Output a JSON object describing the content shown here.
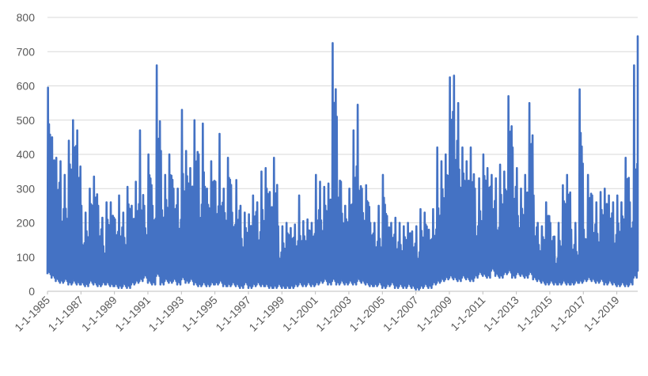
{
  "chart_data": {
    "type": "line",
    "title": "",
    "xlabel": "",
    "ylabel": "",
    "ylim": [
      0,
      800
    ],
    "y_ticks": [
      0,
      100,
      200,
      300,
      400,
      500,
      600,
      700,
      800
    ],
    "x_range": [
      "1-1-1985",
      "4-1-2020"
    ],
    "x_tick_labels": [
      "1-1-1985",
      "1-1-1987",
      "1-1-1989",
      "1-1-1991",
      "1-1-1993",
      "1-1-1995",
      "1-1-1997",
      "1-1-1999",
      "1-1-2001",
      "1-1-2003",
      "1-1-2005",
      "1-1-2007",
      "1-1-2009",
      "1-1-2011",
      "1-1-2013",
      "1-1-2015",
      "1-1-2017",
      "1-1-2019"
    ],
    "grid": true,
    "legend": "none",
    "series_color": "#4472C4",
    "series": [
      {
        "x": [
          "1985-01",
          "1985-04",
          "1985-07",
          "1985-10",
          "1986-01",
          "1986-04",
          "1986-07",
          "1986-10",
          "1987-01",
          "1987-04",
          "1987-07",
          "1987-10",
          "1988-01",
          "1988-04",
          "1988-07",
          "1988-10",
          "1989-01",
          "1989-04",
          "1989-07",
          "1989-10",
          "1990-01",
          "1990-04",
          "1990-07",
          "1990-10",
          "1991-01",
          "1991-04",
          "1991-07",
          "1991-10",
          "1992-01",
          "1992-04",
          "1992-07",
          "1992-10",
          "1993-01",
          "1993-04",
          "1993-07",
          "1993-10",
          "1994-01",
          "1994-04",
          "1994-07",
          "1994-10",
          "1995-01",
          "1995-04",
          "1995-07",
          "1995-10",
          "1996-01",
          "1996-04",
          "1996-07",
          "1996-10",
          "1997-01",
          "1997-04",
          "1997-07",
          "1997-10",
          "1998-01",
          "1998-04",
          "1998-07",
          "1998-10",
          "1999-01",
          "1999-04",
          "1999-07",
          "1999-10",
          "2000-01",
          "2000-04",
          "2000-07",
          "2000-10",
          "2001-01",
          "2001-04",
          "2001-07",
          "2001-10",
          "2002-01",
          "2002-04",
          "2002-07",
          "2002-10",
          "2003-01",
          "2003-04",
          "2003-07",
          "2003-10",
          "2004-01",
          "2004-04",
          "2004-07",
          "2004-10",
          "2005-01",
          "2005-04",
          "2005-07",
          "2005-10",
          "2006-01",
          "2006-04",
          "2006-07",
          "2006-10",
          "2007-01",
          "2007-04",
          "2007-07",
          "2007-10",
          "2008-01",
          "2008-04",
          "2008-07",
          "2008-10",
          "2009-01",
          "2009-04",
          "2009-07",
          "2009-10",
          "2010-01",
          "2010-04",
          "2010-07",
          "2010-10",
          "2011-01",
          "2011-04",
          "2011-07",
          "2011-10",
          "2012-01",
          "2012-04",
          "2012-07",
          "2012-10",
          "2013-01",
          "2013-04",
          "2013-07",
          "2013-10",
          "2014-01",
          "2014-04",
          "2014-07",
          "2014-10",
          "2015-01",
          "2015-04",
          "2015-07",
          "2015-10",
          "2016-01",
          "2016-04",
          "2016-07",
          "2016-10",
          "2017-01",
          "2017-04",
          "2017-07",
          "2017-10",
          "2018-01",
          "2018-04",
          "2018-07",
          "2018-10",
          "2019-01",
          "2019-04",
          "2019-07",
          "2019-10",
          "2020-01",
          "2020-04"
        ],
        "high": [
          595,
          450,
          390,
          380,
          340,
          440,
          500,
          470,
          250,
          230,
          300,
          335,
          250,
          215,
          260,
          260,
          210,
          280,
          230,
          305,
          250,
          320,
          470,
          250,
          400,
          250,
          660,
          410,
          340,
          400,
          300,
          300,
          530,
          410,
          360,
          500,
          400,
          490,
          300,
          380,
          320,
          460,
          300,
          390,
          230,
          325,
          250,
          230,
          225,
          280,
          260,
          350,
          360,
          290,
          390,
          190,
          190,
          200,
          185,
          195,
          280,
          205,
          210,
          200,
          340,
          320,
          305,
          315,
          725,
          510,
          320,
          250,
          300,
          470,
          545,
          300,
          310,
          200,
          200,
          250,
          340,
          220,
          200,
          215,
          200,
          190,
          200,
          175,
          190,
          240,
          230,
          180,
          240,
          420,
          380,
          400,
          625,
          630,
          550,
          420,
          380,
          420,
          300,
          330,
          400,
          360,
          340,
          330,
          370,
          350,
          570,
          420,
          360,
          300,
          340,
          550,
          280,
          200,
          190,
          260,
          200,
          160,
          200,
          310,
          340,
          180,
          200,
          590,
          180,
          340,
          280,
          260,
          290,
          300,
          280,
          260,
          280,
          260,
          390,
          260,
          660,
          745
        ],
        "low": [
          50,
          40,
          30,
          25,
          30,
          20,
          25,
          20,
          20,
          15,
          25,
          20,
          15,
          20,
          20,
          15,
          15,
          10,
          15,
          10,
          20,
          25,
          30,
          40,
          25,
          20,
          45,
          20,
          30,
          25,
          30,
          20,
          35,
          25,
          30,
          20,
          15,
          20,
          15,
          20,
          20,
          25,
          15,
          15,
          20,
          15,
          10,
          20,
          10,
          15,
          20,
          15,
          15,
          10,
          10,
          15,
          10,
          10,
          10,
          15,
          20,
          15,
          20,
          15,
          20,
          25,
          30,
          20,
          30,
          20,
          25,
          20,
          25,
          20,
          30,
          25,
          20,
          15,
          15,
          20,
          10,
          15,
          20,
          10,
          15,
          10,
          15,
          10,
          5,
          10,
          15,
          10,
          20,
          25,
          30,
          35,
          40,
          35,
          30,
          40,
          35,
          30,
          40,
          50,
          45,
          40,
          60,
          45,
          40,
          50,
          55,
          40,
          50,
          45,
          40,
          50,
          35,
          30,
          25,
          20,
          25,
          20,
          20,
          25,
          20,
          20,
          25,
          25,
          30,
          35,
          30,
          25,
          30,
          20,
          25,
          20,
          15,
          20,
          15,
          20,
          40,
          60
        ]
      }
    ]
  }
}
